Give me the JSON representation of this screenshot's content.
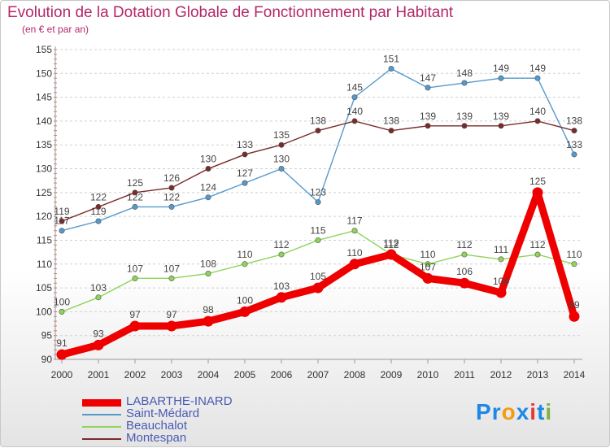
{
  "title": "Evolution de la Dotation Globale de Fonctionnement par Habitant",
  "subtitle": "(en € et par an)",
  "logo": {
    "text": "Proxiti",
    "letters": [
      "P",
      "r",
      "o",
      "x",
      "i",
      "t",
      "i"
    ],
    "colors": [
      "#1e88e5",
      "#1e88e5",
      "#f39c12",
      "#1e88e5",
      "#e53935",
      "#1e88e5",
      "#7cb342"
    ]
  },
  "chart_data": {
    "type": "line",
    "title": "Evolution de la Dotation Globale de Fonctionnement par Habitant",
    "subtitle": "(en € et par an)",
    "x": [
      "2000",
      "2001",
      "2002",
      "2003",
      "2004",
      "2005",
      "2006",
      "2007",
      "2008",
      "2009",
      "2010",
      "2011",
      "2012",
      "2013",
      "2014"
    ],
    "ylim": [
      90,
      155
    ],
    "yticks": [
      "90",
      "95",
      "100",
      "105",
      "110",
      "115",
      "120",
      "125",
      "130",
      "135",
      "140",
      "145",
      "150",
      "155"
    ],
    "grid": "horizontal dashed",
    "legend_position": "bottom-left",
    "series": [
      {
        "name": "LABARTHE-INARD",
        "color": "#ee0000",
        "emphasis": true,
        "values": [
          91,
          93,
          97,
          97,
          98,
          100,
          103,
          105,
          110,
          112,
          107,
          106,
          104,
          125,
          99
        ]
      },
      {
        "name": "Saint-Médard",
        "color": "#5599cc",
        "emphasis": false,
        "values": [
          117,
          119,
          122,
          122,
          124,
          127,
          130,
          123,
          145,
          151,
          147,
          148,
          149,
          149,
          133
        ]
      },
      {
        "name": "Beauchalot",
        "color": "#8fd45a",
        "emphasis": false,
        "values": [
          100,
          103,
          107,
          107,
          108,
          110,
          112,
          115,
          117,
          112,
          110,
          112,
          111,
          112,
          110
        ]
      },
      {
        "name": "Montespan",
        "color": "#7a2a2a",
        "emphasis": false,
        "values": [
          119,
          122,
          125,
          126,
          130,
          133,
          135,
          138,
          140,
          138,
          139,
          139,
          139,
          140,
          138
        ]
      }
    ]
  }
}
